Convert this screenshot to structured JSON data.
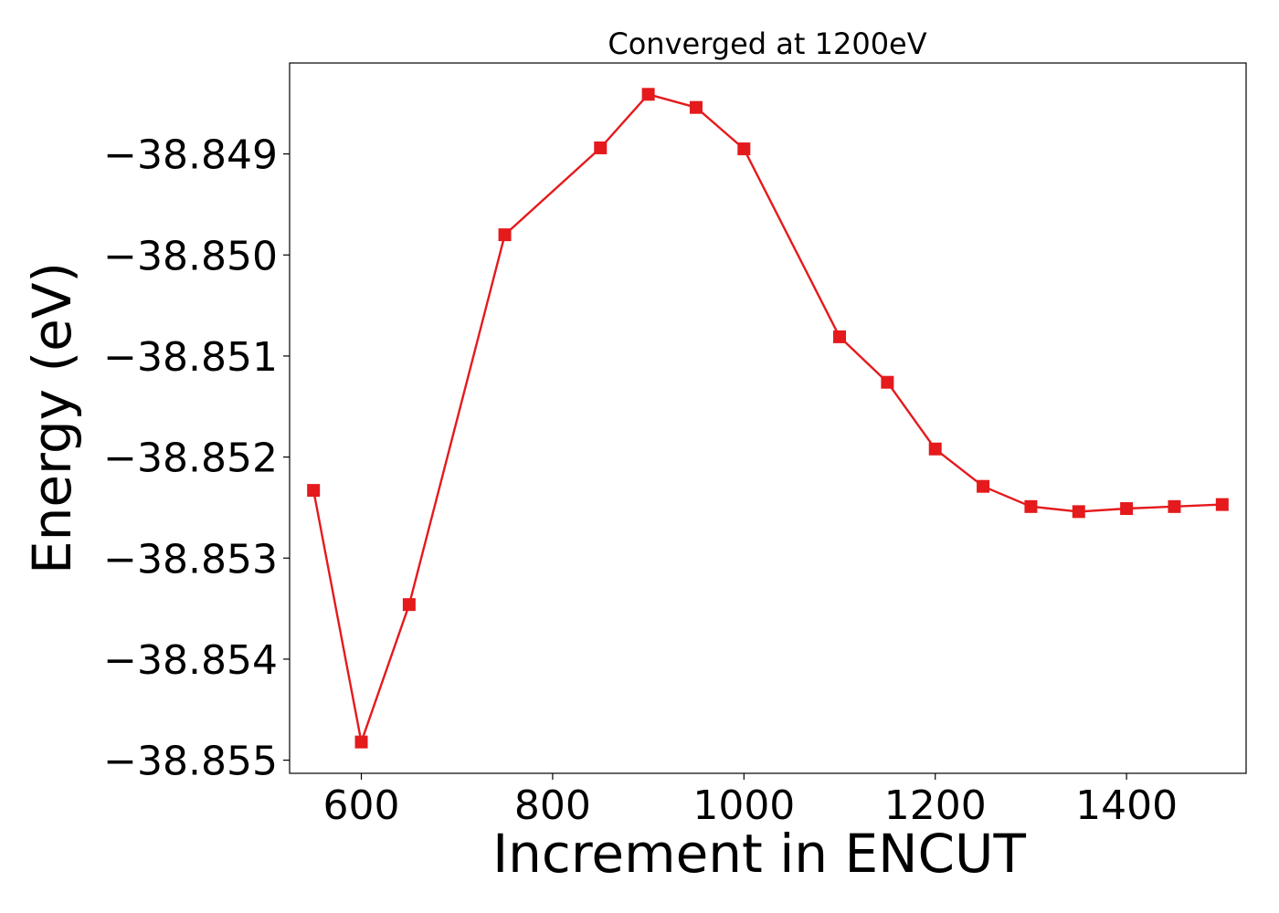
{
  "chart_data": {
    "type": "line",
    "title": "Converged at 1200eV",
    "xlabel": "Increment in ENCUT",
    "ylabel": "Energy (eV)",
    "x": [
      550,
      600,
      650,
      750,
      850,
      900,
      950,
      1000,
      1100,
      1150,
      1200,
      1250,
      1300,
      1350,
      1400,
      1450,
      1500
    ],
    "series": [
      {
        "values": [
          -38.85233,
          -38.85482,
          -38.85346,
          -38.8498,
          -38.84894,
          -38.84841,
          -38.84854,
          -38.84895,
          -38.85081,
          -38.85126,
          -38.85192,
          -38.85229,
          -38.85249,
          -38.85254,
          -38.85251,
          -38.85249,
          -38.85247
        ],
        "color": "#e41a1c",
        "marker": "square"
      }
    ],
    "xlim": [
      525,
      1525
    ],
    "ylim": [
      -38.85513,
      -38.8481
    ],
    "xticks": [
      600,
      800,
      1000,
      1200,
      1400
    ],
    "xtick_labels": [
      "600",
      "800",
      "1000",
      "1200",
      "1400"
    ],
    "yticks": [
      -38.855,
      -38.854,
      -38.853,
      -38.852,
      -38.851,
      -38.85,
      -38.849
    ],
    "ytick_labels": [
      "−38.855",
      "−38.854",
      "−38.853",
      "−38.852",
      "−38.851",
      "−38.850",
      "−38.849"
    ],
    "grid": false,
    "legend": "none"
  }
}
